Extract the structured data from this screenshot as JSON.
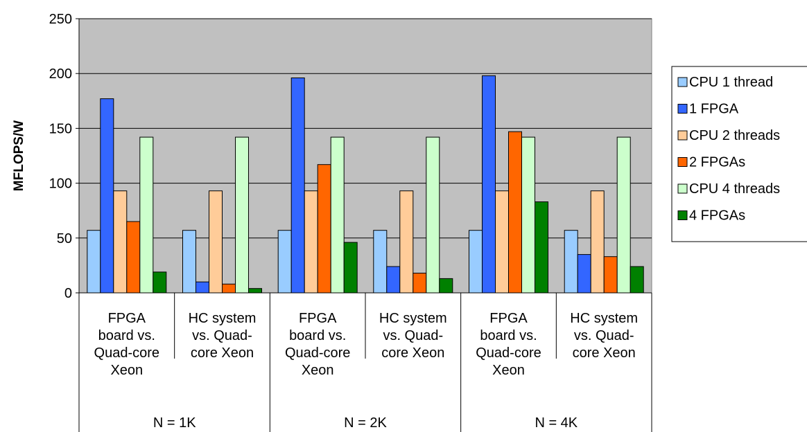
{
  "chart_data": {
    "type": "bar",
    "title": "",
    "ylabel": "MFLOPS/W",
    "ylim": [
      0,
      250
    ],
    "yticks": [
      0,
      50,
      100,
      150,
      200,
      250
    ],
    "grid": true,
    "legend_position": "right",
    "groups": [
      "N = 1K",
      "N = 2K",
      "N = 4K"
    ],
    "categories": [
      [
        "FPGA",
        "board vs.",
        "Quad-core",
        "Xeon"
      ],
      [
        "HC system",
        "vs. Quad-",
        "core Xeon"
      ],
      [
        "FPGA",
        "board vs.",
        "Quad-core",
        "Xeon"
      ],
      [
        "HC system",
        "vs. Quad-",
        "core Xeon"
      ],
      [
        "FPGA",
        "board vs.",
        "Quad-core",
        "Xeon"
      ],
      [
        "HC system",
        "vs. Quad-",
        "core Xeon"
      ]
    ],
    "series": [
      {
        "name": "CPU 1 thread",
        "color": "#99CCFF",
        "values": [
          57,
          57,
          57,
          57,
          57,
          57
        ]
      },
      {
        "name": "1 FPGA",
        "color": "#3366FF",
        "values": [
          177,
          10,
          196,
          24,
          198,
          35
        ]
      },
      {
        "name": "CPU 2 threads",
        "color": "#FFCC99",
        "values": [
          93,
          93,
          93,
          93,
          93,
          93
        ]
      },
      {
        "name": "2 FPGAs",
        "color": "#FF6600",
        "values": [
          65,
          8,
          117,
          18,
          147,
          33
        ]
      },
      {
        "name": "CPU 4 threads",
        "color": "#CCFFCC",
        "values": [
          142,
          142,
          142,
          142,
          142,
          142
        ]
      },
      {
        "name": "4 FPGAs",
        "color": "#008000",
        "values": [
          19,
          4,
          46,
          13,
          83,
          24
        ]
      }
    ],
    "plot_background": "#C0C0C0"
  }
}
